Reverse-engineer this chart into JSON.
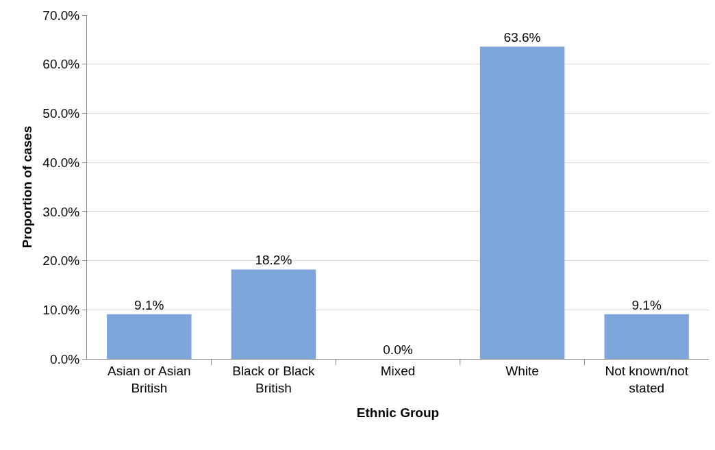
{
  "chart_data": {
    "type": "bar",
    "xlabel": "Ethnic Group",
    "ylabel": "Proportion of cases",
    "categories": [
      "Asian or Asian British",
      "Black or Black British",
      "Mixed",
      "White",
      "Not known/not stated"
    ],
    "values": [
      9.1,
      18.2,
      0.0,
      63.6,
      9.1
    ],
    "value_labels": [
      "9.1%",
      "18.2%",
      "0.0%",
      "63.6%",
      "9.1%"
    ],
    "color": "#7fa6dc",
    "ylim": [
      0,
      70
    ],
    "yticks": [
      {
        "value": 0,
        "label": "0.0%"
      },
      {
        "value": 10,
        "label": "10.0%"
      },
      {
        "value": 20,
        "label": "20.0%"
      },
      {
        "value": 30,
        "label": "30.0%"
      },
      {
        "value": 40,
        "label": "40.0%"
      },
      {
        "value": 50,
        "label": "50.0%"
      },
      {
        "value": 60,
        "label": "60.0%"
      },
      {
        "value": 70,
        "label": "70.0%"
      }
    ],
    "grid": "y"
  }
}
